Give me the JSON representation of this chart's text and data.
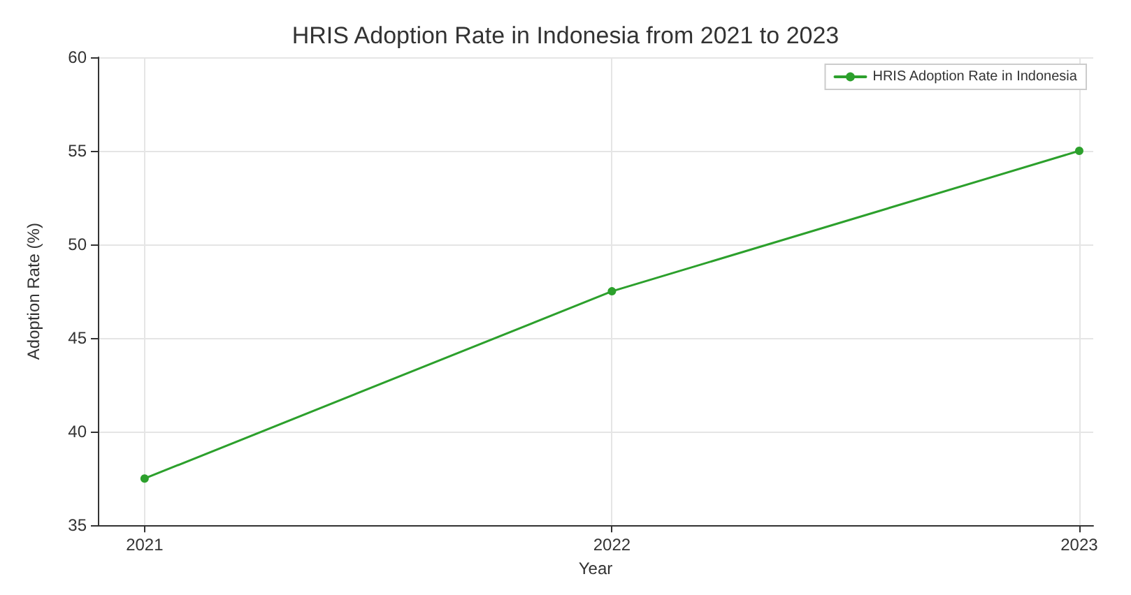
{
  "chart_data": {
    "type": "line",
    "title": "HRIS Adoption Rate in Indonesia from 2021 to 2023",
    "xlabel": "Year",
    "ylabel": "Adoption Rate (%)",
    "x": [
      2021,
      2022,
      2023
    ],
    "series": [
      {
        "name": "HRIS Adoption Rate in Indonesia",
        "color": "#2ca02c",
        "values": [
          37.5,
          47.5,
          55
        ]
      }
    ],
    "xlim": [
      2020.9,
      2023.03
    ],
    "xticks": [
      2021,
      2022,
      2023
    ],
    "ylim": [
      35,
      60
    ],
    "yticks": [
      35,
      40,
      45,
      50,
      55,
      60
    ],
    "grid": true,
    "legend": "top right",
    "marker": "circle",
    "line_style": "solid"
  }
}
